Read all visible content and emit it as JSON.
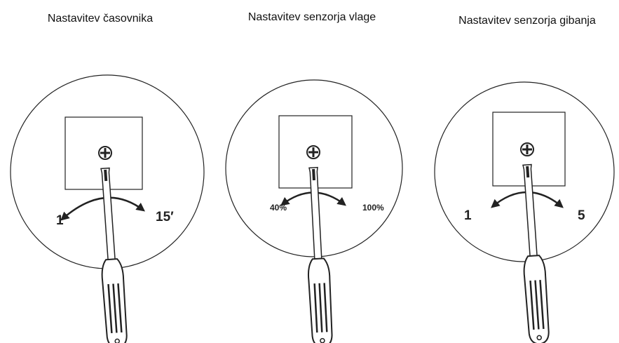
{
  "panels": [
    {
      "title": "Nastavitev časovnika",
      "min_label": "1′",
      "max_label": "15′"
    },
    {
      "title": "Nastavitev senzorja vlage",
      "min_label": "40%",
      "max_label": "100%"
    },
    {
      "title": "Nastavitev senzorja gibanja",
      "min_label": "1",
      "max_label": "5"
    }
  ]
}
